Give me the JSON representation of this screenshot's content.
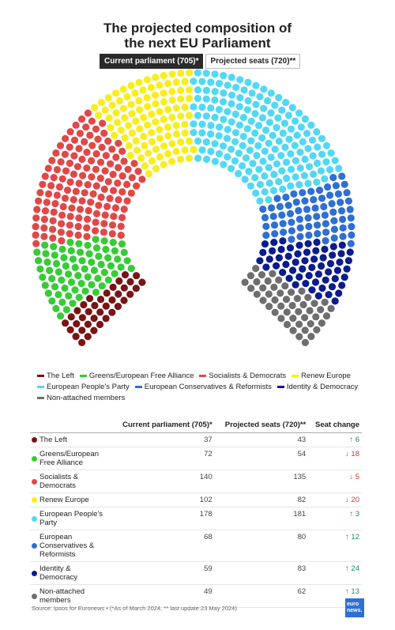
{
  "chart_data": {
    "type": "parliament",
    "title": "The projected composition of the next EU Parliament",
    "categories": [
      "The Left",
      "Greens/European Free Alliance",
      "Socialists & Democrats",
      "Renew Europe",
      "European People's Party",
      "European Conservatives & Reformists",
      "Identity & Democracy",
      "Non-attached members"
    ],
    "colors": [
      "#7a1414",
      "#36cc36",
      "#e04848",
      "#f7ee1e",
      "#52d8f2",
      "#2f6fd2",
      "#0b1c8c",
      "#6e6e6e"
    ],
    "series": [
      {
        "name": "Current parliament (705)*",
        "values": [
          37,
          72,
          140,
          102,
          178,
          68,
          59,
          49
        ]
      },
      {
        "name": "Projected seats (720)**",
        "values": [
          43,
          54,
          135,
          82,
          181,
          80,
          83,
          62
        ]
      }
    ],
    "seat_change": {
      "title": "Seat change",
      "values": [
        6,
        -18,
        -5,
        -20,
        3,
        12,
        24,
        13
      ],
      "value_labels": [
        "↑ 6",
        "↓ 18",
        "↓ 5",
        "↓ 20",
        "↑ 3",
        "↑ 12",
        "↑ 24",
        "↑ 13"
      ]
    },
    "source": "Source: Ipsos for Euronews • (*As of March 2024, ** last update 23 May 2024)",
    "logo": {
      "line1": "euro",
      "line2": "news."
    }
  }
}
